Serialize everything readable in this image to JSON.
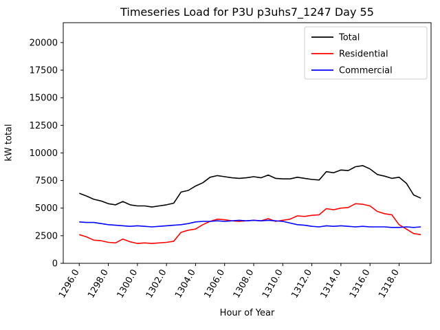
{
  "title": "Timeseries Load for P3U p3uhs7_1247  Day 55",
  "chart_data": {
    "type": "line",
    "title": "Timeseries Load for P3U p3uhs7_1247  Day 55",
    "xlabel": "Hour of Year",
    "ylabel": "kW total",
    "xlim": [
      1294.9,
      1320.2
    ],
    "ylim": [
      0,
      21800
    ],
    "grid": false,
    "legend_position": "upper right",
    "legend_border_color": "#cccccc",
    "xticks": [
      1296,
      1298,
      1300,
      1302,
      1304,
      1306,
      1308,
      1310,
      1312,
      1314,
      1316,
      1318
    ],
    "xtick_labels": [
      "1296.0",
      "1298.0",
      "1300.0",
      "1302.0",
      "1304.0",
      "1306.0",
      "1308.0",
      "1310.0",
      "1312.0",
      "1314.0",
      "1316.0",
      "1318.0"
    ],
    "yticks": [
      0,
      2500,
      5000,
      7500,
      10000,
      12500,
      15000,
      17500,
      20000
    ],
    "ytick_labels": [
      "0",
      "2500",
      "5000",
      "7500",
      "10000",
      "12500",
      "15000",
      "17500",
      "20000"
    ],
    "x": [
      1296.0,
      1296.5,
      1297.0,
      1297.5,
      1298.0,
      1298.5,
      1299.0,
      1299.5,
      1300.0,
      1300.5,
      1301.0,
      1301.5,
      1302.0,
      1302.5,
      1303.0,
      1303.5,
      1304.0,
      1304.5,
      1305.0,
      1305.5,
      1306.0,
      1306.5,
      1307.0,
      1307.5,
      1308.0,
      1308.5,
      1309.0,
      1309.5,
      1310.0,
      1310.5,
      1311.0,
      1311.5,
      1312.0,
      1312.5,
      1313.0,
      1313.5,
      1314.0,
      1314.5,
      1315.0,
      1315.5,
      1316.0,
      1316.5,
      1317.0,
      1317.5,
      1318.0,
      1318.5,
      1319.0,
      1319.5
    ],
    "series": [
      {
        "name": "Total",
        "color": "#000000",
        "values": [
          6350,
          6100,
          5800,
          5650,
          5400,
          5300,
          5600,
          5300,
          5200,
          5200,
          5100,
          5200,
          5300,
          5450,
          6450,
          6600,
          7000,
          7300,
          7800,
          7950,
          7850,
          7750,
          7700,
          7750,
          7850,
          7750,
          8000,
          7700,
          7650,
          7650,
          7800,
          7700,
          7600,
          7550,
          8300,
          8200,
          8450,
          8400,
          8750,
          8850,
          8550,
          8050,
          7900,
          7700,
          7800,
          7250,
          6200,
          5900
        ]
      },
      {
        "name": "Residential",
        "color": "#ff0000",
        "values": [
          2600,
          2400,
          2100,
          2050,
          1900,
          1850,
          2200,
          1950,
          1800,
          1850,
          1800,
          1850,
          1900,
          2000,
          2800,
          3000,
          3100,
          3500,
          3800,
          4000,
          3950,
          3850,
          3800,
          3850,
          3900,
          3850,
          4050,
          3800,
          3900,
          4000,
          4300,
          4250,
          4350,
          4400,
          4950,
          4850,
          5000,
          5050,
          5400,
          5350,
          5200,
          4700,
          4500,
          4400,
          3500,
          3100,
          2700,
          2600
        ]
      },
      {
        "name": "Commercial",
        "color": "#0000ff",
        "values": [
          3750,
          3700,
          3700,
          3600,
          3500,
          3450,
          3400,
          3350,
          3400,
          3350,
          3300,
          3350,
          3400,
          3450,
          3500,
          3600,
          3750,
          3800,
          3800,
          3850,
          3800,
          3850,
          3900,
          3850,
          3900,
          3850,
          3900,
          3850,
          3800,
          3650,
          3500,
          3450,
          3350,
          3300,
          3400,
          3350,
          3400,
          3350,
          3300,
          3350,
          3300,
          3300,
          3300,
          3250,
          3250,
          3300,
          3250,
          3300
        ]
      }
    ]
  }
}
